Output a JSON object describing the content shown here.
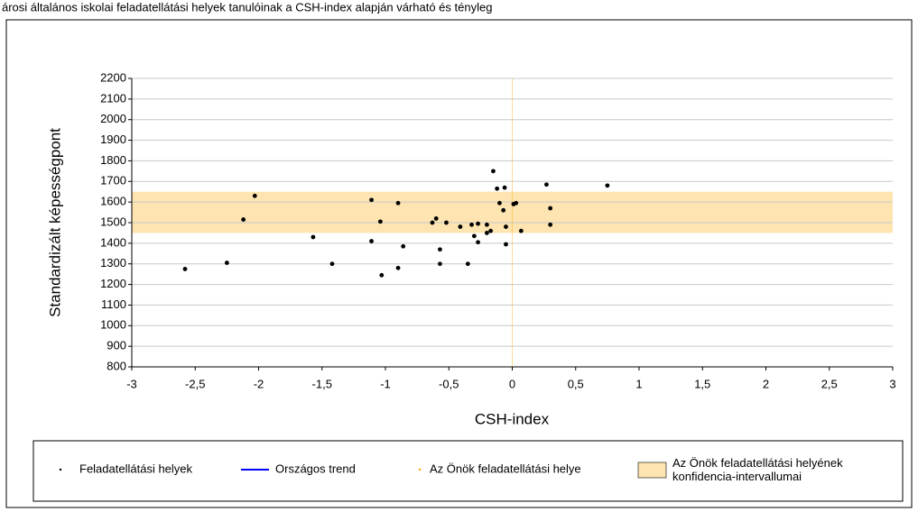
{
  "chart_data": {
    "type": "scatter",
    "title": "árosi általános iskolai feladatellátási helyek tanulóinak a CSH-index alapján várható és tényleg",
    "x_label": "CSH-index",
    "y_label": "Standardizált képességpont",
    "xlim": [
      -3,
      3
    ],
    "xticks": [
      -3,
      {
        "value": -2.5,
        "label": "-2,5"
      },
      -2,
      {
        "value": -1.5,
        "label": "-1,5"
      },
      -1,
      {
        "value": -0.5,
        "label": "-0,5"
      },
      0,
      {
        "value": 0.5,
        "label": "0,5"
      },
      1,
      {
        "value": 1.5,
        "label": "1,5"
      },
      2,
      {
        "value": 2.5,
        "label": "2,5"
      },
      3
    ],
    "ylim": [
      800,
      2200
    ],
    "yticks": [
      800,
      900,
      1000,
      1100,
      1200,
      1300,
      1400,
      1500,
      1600,
      1700,
      1800,
      1900,
      2000,
      2100,
      2200
    ],
    "grid": true,
    "series": [
      {
        "name": "Feladatellátási helyek",
        "color": "#000000",
        "x": [
          -2.58,
          -2.25,
          -2.12,
          -2.03,
          -1.57,
          -1.42,
          -1.11,
          -1.11,
          -1.04,
          -1.03,
          -0.9,
          -0.9,
          -0.86,
          -0.63,
          -0.6,
          -0.57,
          -0.57,
          -0.52,
          -0.41,
          -0.35,
          -0.32,
          -0.3,
          -0.27,
          -0.27,
          -0.2,
          -0.2,
          -0.17,
          -0.15,
          -0.12,
          -0.1,
          -0.07,
          -0.06,
          -0.05,
          -0.05,
          0.01,
          0.03,
          0.07,
          0.27,
          0.3,
          0.3,
          0.75
        ],
        "values": [
          1275,
          1305,
          1515,
          1630,
          1430,
          1300,
          1610,
          1410,
          1505,
          1245,
          1595,
          1280,
          1385,
          1500,
          1520,
          1370,
          1300,
          1500,
          1480,
          1300,
          1490,
          1435,
          1495,
          1405,
          1490,
          1450,
          1460,
          1750,
          1665,
          1595,
          1560,
          1670,
          1480,
          1395,
          1590,
          1595,
          1460,
          1685,
          1570,
          1490,
          1680
        ]
      },
      {
        "name": "Országos trend",
        "color": "#0000ff"
      },
      {
        "name": "Az Önök feladatellátási helye",
        "color": "#ffa500",
        "x_line": 0
      },
      {
        "name": "Az Önök feladatellátási helyének konfidencia-intervallumai",
        "color": "#fde4b0",
        "range": [
          1450,
          1650
        ]
      }
    ]
  }
}
